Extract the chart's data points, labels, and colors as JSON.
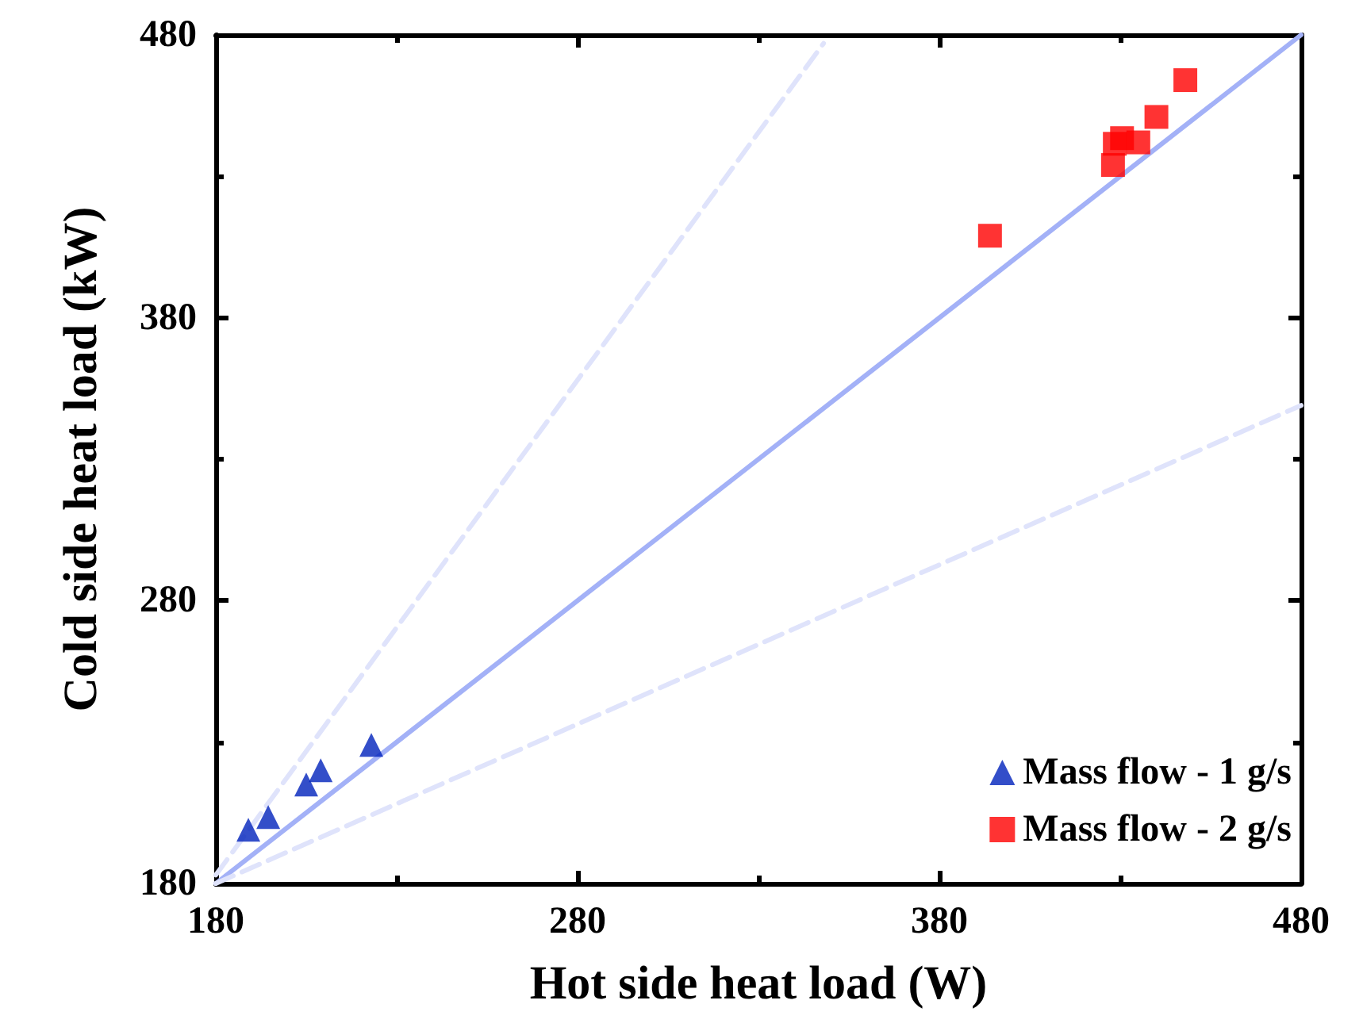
{
  "chart_data": {
    "type": "scatter",
    "xlabel": "Hot side heat load (W)",
    "ylabel": "Cold side heat load (kW)",
    "xlim": [
      180,
      480
    ],
    "ylim": [
      180,
      480
    ],
    "xticks": [
      180,
      280,
      380,
      480
    ],
    "yticks": [
      180,
      280,
      380,
      480
    ],
    "grid": false,
    "legend": "bottom right",
    "series": [
      {
        "type": "line",
        "color": "#a3b1f7",
        "x": [
          180,
          480
        ],
        "values": [
          180,
          480
        ],
        "marker": "none",
        "line_style": "solid"
      },
      {
        "type": "line",
        "color": "#dfe3fb",
        "x": [
          180,
          348
        ],
        "values": [
          183,
          477
        ],
        "marker": "none",
        "line_style": "dashed"
      },
      {
        "type": "line",
        "color": "#dfe3fb",
        "x": [
          180,
          480
        ],
        "values": [
          180,
          349
        ],
        "marker": "none",
        "line_style": "dashed"
      },
      {
        "name": "Mass flow - 1 g/s",
        "color": "#0022bb",
        "marker": "triangle",
        "x": [
          189,
          194.5,
          205,
          209,
          223
        ],
        "values": [
          199,
          203.5,
          215,
          220,
          229
        ]
      },
      {
        "name": "Mass flow - 2 g/s",
        "color": "#ff0000",
        "marker": "square",
        "x": [
          394,
          428,
          428.5,
          430.5,
          435,
          440,
          448
        ],
        "values": [
          409,
          434,
          441.5,
          443.5,
          442,
          451,
          464
        ]
      }
    ]
  }
}
